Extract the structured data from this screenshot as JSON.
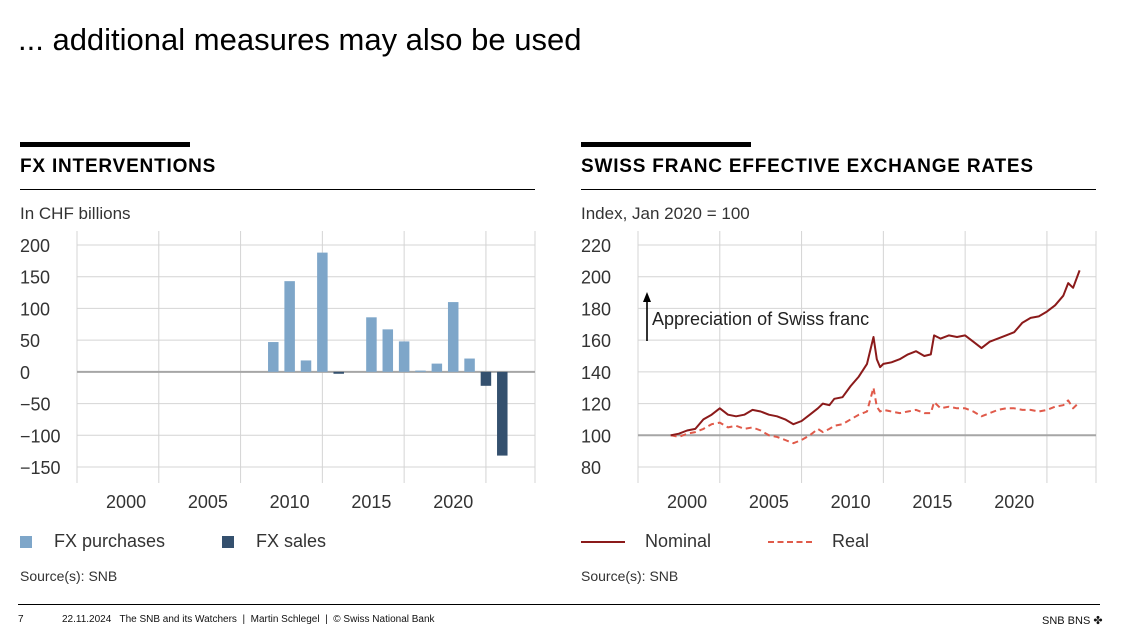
{
  "slide": {
    "title": "... additional measures may also be used"
  },
  "panels": {
    "left": {
      "heading": "FX INTERVENTIONS",
      "unit": "In CHF billions",
      "source": "Source(s): SNB"
    },
    "right": {
      "heading": "SWISS FRANC EFFECTIVE EXCHANGE RATES",
      "unit": "Index, Jan 2020 = 100",
      "source": "Source(s): SNB"
    }
  },
  "chart_data": [
    {
      "type": "bar",
      "title": "FX INTERVENTIONS",
      "ylabel": "In CHF billions",
      "ylim": [
        -150,
        200
      ],
      "yticks": [
        200,
        150,
        100,
        50,
        0,
        -50,
        -100,
        -150
      ],
      "ytick_labels": [
        "200",
        "150",
        "100",
        "50",
        "0",
        "−50",
        "−100",
        "−150"
      ],
      "xlim": [
        1997,
        2025
      ],
      "xticks": [
        2000,
        2005,
        2010,
        2015,
        2020
      ],
      "xtick_labels": [
        "2000",
        "2005",
        "2010",
        "2015",
        "2020"
      ],
      "xgrid": [
        1997,
        2002,
        2007,
        2012,
        2017,
        2022,
        2025
      ],
      "colors": {
        "purchases": "#7ea6c9",
        "sales": "#34506e"
      },
      "legend": [
        {
          "name": "FX purchases",
          "color": "#7ea6c9"
        },
        {
          "name": "FX sales",
          "color": "#34506e"
        }
      ],
      "series": [
        {
          "name": "FX purchases",
          "x": [
            2009,
            2010,
            2011,
            2012,
            2013,
            2014,
            2015,
            2016,
            2017,
            2018,
            2019,
            2020,
            2021
          ],
          "values": [
            47,
            143,
            18,
            188,
            0,
            0,
            86,
            67,
            48,
            2,
            13,
            110,
            21
          ]
        },
        {
          "name": "FX sales",
          "x": [
            2013,
            2022,
            2023
          ],
          "values": [
            -3,
            -22,
            -132
          ]
        }
      ]
    },
    {
      "type": "line",
      "title": "SWISS FRANC EFFECTIVE EXCHANGE RATES",
      "ylabel": "Index, Jan 2020 = 100",
      "ylim": [
        80,
        220
      ],
      "yticks": [
        220,
        200,
        180,
        160,
        140,
        120,
        100,
        80
      ],
      "ytick_labels": [
        "220",
        "200",
        "180",
        "160",
        "140",
        "120",
        "100",
        "80"
      ],
      "xlim": [
        1997,
        2025
      ],
      "xticks": [
        2000,
        2005,
        2010,
        2015,
        2020
      ],
      "xtick_labels": [
        "2000",
        "2005",
        "2010",
        "2015",
        "2020"
      ],
      "xgrid": [
        1997,
        2002,
        2007,
        2012,
        2017,
        2022,
        2025
      ],
      "baseline": 100,
      "annotation": "Appreciation of Swiss franc",
      "legend": [
        {
          "name": "Nominal",
          "color": "#8b1a1a",
          "style": "solid"
        },
        {
          "name": "Real",
          "color": "#e05a4a",
          "style": "dashed"
        }
      ],
      "series": [
        {
          "name": "Nominal",
          "color": "#8b1a1a",
          "x": [
            1999.0,
            1999.5,
            2000.0,
            2000.5,
            2001.0,
            2001.5,
            2002.0,
            2002.5,
            2003.0,
            2003.5,
            2004.0,
            2004.5,
            2005.0,
            2005.5,
            2006.0,
            2006.5,
            2007.0,
            2007.5,
            2008.0,
            2008.3,
            2008.7,
            2009.0,
            2009.5,
            2010.0,
            2010.5,
            2011.0,
            2011.4,
            2011.6,
            2011.8,
            2012.0,
            2012.5,
            2013.0,
            2013.5,
            2014.0,
            2014.5,
            2014.9,
            2015.1,
            2015.5,
            2016.0,
            2016.5,
            2017.0,
            2017.5,
            2018.0,
            2018.5,
            2019.0,
            2019.5,
            2020.0,
            2020.5,
            2021.0,
            2021.5,
            2022.0,
            2022.5,
            2023.0,
            2023.3,
            2023.6,
            2024.0
          ],
          "values": [
            100,
            101,
            103,
            104,
            110,
            113,
            117,
            113,
            112,
            113,
            116,
            115,
            113,
            112,
            110,
            107,
            109,
            113,
            117,
            120,
            119,
            123,
            124,
            131,
            137,
            145,
            162,
            148,
            143,
            145,
            146,
            148,
            151,
            153,
            150,
            151,
            163,
            161,
            163,
            162,
            163,
            159,
            155,
            159,
            161,
            163,
            165,
            171,
            174,
            175,
            178,
            182,
            188,
            196,
            193,
            204
          ]
        },
        {
          "name": "Real",
          "color": "#e05a4a",
          "x": [
            1999.0,
            1999.5,
            2000.0,
            2000.5,
            2001.0,
            2001.5,
            2002.0,
            2002.5,
            2003.0,
            2003.5,
            2004.0,
            2004.5,
            2005.0,
            2005.5,
            2006.0,
            2006.5,
            2007.0,
            2007.5,
            2008.0,
            2008.3,
            2008.7,
            2009.0,
            2009.5,
            2010.0,
            2010.5,
            2011.0,
            2011.4,
            2011.6,
            2011.8,
            2012.0,
            2012.5,
            2013.0,
            2013.5,
            2014.0,
            2014.5,
            2014.9,
            2015.1,
            2015.5,
            2016.0,
            2016.5,
            2017.0,
            2017.5,
            2018.0,
            2018.5,
            2019.0,
            2019.5,
            2020.0,
            2020.5,
            2021.0,
            2021.5,
            2022.0,
            2022.5,
            2023.0,
            2023.3,
            2023.6,
            2024.0
          ],
          "values": [
            100,
            99,
            101,
            102,
            104,
            107,
            108,
            105,
            106,
            104,
            105,
            103,
            100,
            99,
            97,
            95,
            97,
            100,
            104,
            102,
            104,
            106,
            107,
            110,
            113,
            115,
            130,
            118,
            115,
            116,
            115,
            114,
            115,
            116,
            114,
            114,
            121,
            117,
            118,
            117,
            117,
            115,
            112,
            114,
            116,
            117,
            117,
            116,
            116,
            115,
            116,
            118,
            119,
            122,
            117,
            121
          ]
        }
      ]
    }
  ],
  "footer": {
    "page": "7",
    "text": "22.11.2024   The SNB and its Watchers  |  Martin Schlegel  |  © Swiss National Bank",
    "brand": "SNB BNS ✤"
  }
}
